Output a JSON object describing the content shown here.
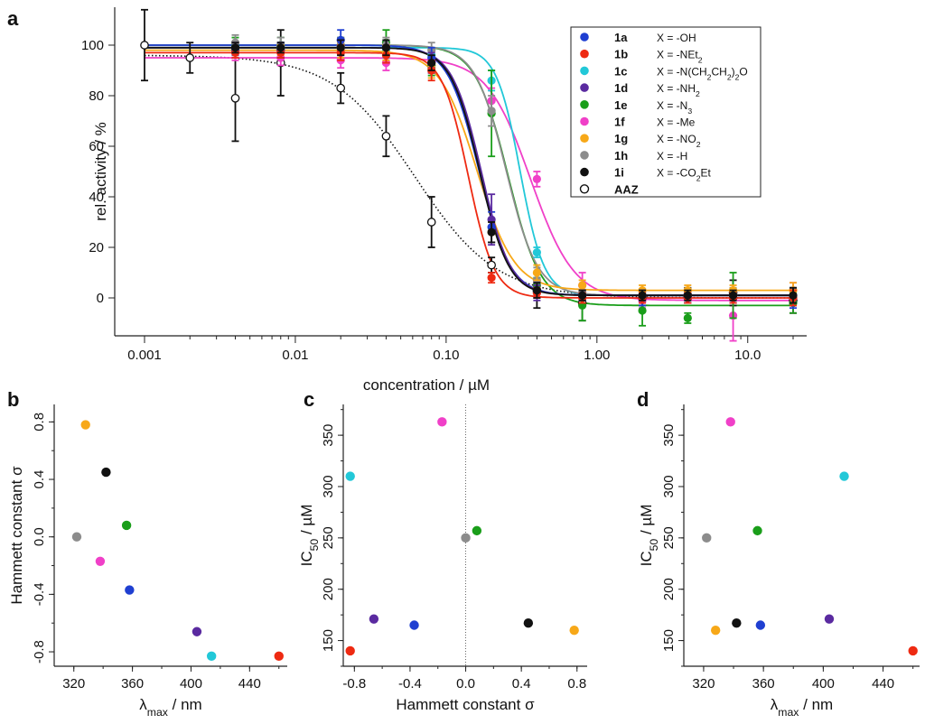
{
  "colors": {
    "1a": "#1f3fd1",
    "1b": "#ee2a12",
    "1c": "#22c8d8",
    "1d": "#5a2aa0",
    "1e": "#1a9e1a",
    "1f": "#f040c8",
    "1g": "#f7a818",
    "1h": "#8c8c8c",
    "1i": "#111111",
    "AAZ": "#111111"
  },
  "chart_data": [
    {
      "panel": "a",
      "type": "line",
      "xscale": "log",
      "xlabel": "concentration / µM",
      "ylabel": "rel. activity / %",
      "xlim": [
        0.001,
        20
      ],
      "ylim": [
        -15,
        115
      ],
      "xticks": [
        0.001,
        0.01,
        0.1,
        1,
        10
      ],
      "xtick_labels": [
        "0.001",
        "0.01",
        "0.10",
        "1.00",
        "10.0"
      ],
      "yticks": [
        0,
        20,
        40,
        60,
        80,
        100
      ],
      "legend": [
        {
          "id": "1a",
          "label": "X = -OH"
        },
        {
          "id": "1b",
          "label": "X = -NEt",
          "sub": "2"
        },
        {
          "id": "1c",
          "label": "X = -N(CH",
          "label2": "CH",
          "label3": ")",
          "label4": "O",
          "sub": "2",
          "sub2": "2",
          "sub3": "2"
        },
        {
          "id": "1d",
          "label": "X = -NH",
          "sub": "2"
        },
        {
          "id": "1e",
          "label": "X = -N",
          "sub": "3"
        },
        {
          "id": "1f",
          "label": "X = -Me"
        },
        {
          "id": "1g",
          "label": "X = -NO",
          "sub": "2"
        },
        {
          "id": "1h",
          "label": "X = -H"
        },
        {
          "id": "1i",
          "label": "X = -CO",
          "label2": "Et",
          "sub": "2"
        },
        {
          "id": "AAZ",
          "label": ""
        }
      ],
      "series": [
        {
          "name": "1a",
          "ec50": 0.165,
          "hill": 4.2,
          "top": 100,
          "bottom": 1,
          "points": [
            [
              0.004,
              98,
              2
            ],
            [
              0.008,
              98,
              3
            ],
            [
              0.02,
              102,
              4
            ],
            [
              0.04,
              99,
              3
            ],
            [
              0.08,
              95,
              4
            ],
            [
              0.2,
              28,
              6
            ],
            [
              0.4,
              3,
              3
            ],
            [
              0.8,
              1,
              2
            ],
            [
              2,
              0,
              3
            ],
            [
              4,
              0,
              2
            ],
            [
              8,
              0,
              2
            ],
            [
              20,
              0,
              4
            ]
          ]
        },
        {
          "name": "1b",
          "ec50": 0.14,
          "hill": 5.0,
          "top": 97,
          "bottom": 0,
          "points": [
            [
              0.004,
              97,
              2
            ],
            [
              0.008,
              97,
              2
            ],
            [
              0.02,
              97,
              3
            ],
            [
              0.04,
              96,
              3
            ],
            [
              0.08,
              90,
              4
            ],
            [
              0.2,
              8,
              2
            ],
            [
              0.4,
              2,
              2
            ],
            [
              0.8,
              0,
              2
            ],
            [
              2,
              0,
              2
            ],
            [
              4,
              0,
              2
            ],
            [
              8,
              0,
              2
            ],
            [
              20,
              0,
              3
            ]
          ]
        },
        {
          "name": "1c",
          "ec50": 0.31,
          "hill": 5.5,
          "top": 99,
          "bottom": 1,
          "points": [
            [
              0.004,
              99,
              2
            ],
            [
              0.008,
              99,
              2
            ],
            [
              0.02,
              99,
              3
            ],
            [
              0.04,
              98,
              3
            ],
            [
              0.08,
              96,
              3
            ],
            [
              0.2,
              86,
              4
            ],
            [
              0.4,
              18,
              2
            ],
            [
              0.8,
              1,
              2
            ],
            [
              2,
              0,
              2
            ],
            [
              4,
              0,
              2
            ],
            [
              8,
              0,
              2
            ],
            [
              20,
              0,
              3
            ]
          ]
        },
        {
          "name": "1d",
          "ec50": 0.171,
          "hill": 4.5,
          "top": 99,
          "bottom": 1,
          "points": [
            [
              0.004,
              99,
              2
            ],
            [
              0.008,
              98,
              3
            ],
            [
              0.02,
              99,
              3
            ],
            [
              0.04,
              99,
              3
            ],
            [
              0.08,
              93,
              4
            ],
            [
              0.2,
              31,
              10
            ],
            [
              0.4,
              2,
              3
            ],
            [
              0.8,
              1,
              2
            ],
            [
              2,
              0,
              2
            ],
            [
              4,
              0,
              2
            ],
            [
              8,
              0,
              2
            ],
            [
              20,
              0,
              3
            ]
          ]
        },
        {
          "name": "1e",
          "ec50": 0.257,
          "hill": 4.0,
          "top": 100,
          "bottom": -3,
          "points": [
            [
              0.004,
              100,
              3
            ],
            [
              0.008,
              100,
              3
            ],
            [
              0.02,
              100,
              3
            ],
            [
              0.04,
              101,
              5
            ],
            [
              0.08,
              92,
              4
            ],
            [
              0.2,
              73,
              17
            ],
            [
              0.4,
              5,
              3
            ],
            [
              0.8,
              -3,
              6
            ],
            [
              2,
              -5,
              6
            ],
            [
              4,
              -8,
              2
            ],
            [
              8,
              1,
              9
            ],
            [
              20,
              -2,
              4
            ]
          ]
        },
        {
          "name": "1f",
          "ec50": 0.363,
          "hill": 3.0,
          "top": 95,
          "bottom": -1,
          "points": [
            [
              0.004,
              97,
              3
            ],
            [
              0.008,
              95,
              3
            ],
            [
              0.02,
              94,
              3
            ],
            [
              0.04,
              93,
              3
            ],
            [
              0.08,
              92,
              3
            ],
            [
              0.2,
              78,
              5
            ],
            [
              0.4,
              47,
              3
            ],
            [
              0.8,
              5,
              5
            ],
            [
              2,
              -1,
              3
            ],
            [
              4,
              0,
              2
            ],
            [
              8,
              -7,
              10
            ],
            [
              20,
              0,
              6
            ]
          ]
        },
        {
          "name": "1g",
          "ec50": 0.16,
          "hill": 3.5,
          "top": 98,
          "bottom": 3,
          "points": [
            [
              0.004,
              98,
              2
            ],
            [
              0.008,
              98,
              2
            ],
            [
              0.02,
              98,
              3
            ],
            [
              0.04,
              97,
              3
            ],
            [
              0.08,
              91,
              4
            ],
            [
              0.2,
              26,
              4
            ],
            [
              0.4,
              10,
              3
            ],
            [
              0.8,
              5,
              2
            ],
            [
              2,
              3,
              2
            ],
            [
              4,
              3,
              2
            ],
            [
              8,
              3,
              2
            ],
            [
              20,
              3,
              3
            ]
          ]
        },
        {
          "name": "1h",
          "ec50": 0.25,
          "hill": 4.2,
          "top": 100,
          "bottom": 1,
          "points": [
            [
              0.004,
              101,
              3
            ],
            [
              0.008,
              100,
              3
            ],
            [
              0.02,
              100,
              3
            ],
            [
              0.04,
              100,
              3
            ],
            [
              0.08,
              98,
              3
            ],
            [
              0.2,
              74,
              6
            ],
            [
              0.4,
              7,
              5
            ],
            [
              0.8,
              2,
              3
            ],
            [
              2,
              1,
              2
            ],
            [
              4,
              1,
              2
            ],
            [
              8,
              1,
              3
            ],
            [
              20,
              1,
              3
            ]
          ]
        },
        {
          "name": "1i",
          "ec50": 0.167,
          "hill": 4.5,
          "top": 99,
          "bottom": 1,
          "points": [
            [
              0.004,
              99,
              2
            ],
            [
              0.008,
              99,
              2
            ],
            [
              0.02,
              99,
              3
            ],
            [
              0.04,
              99,
              3
            ],
            [
              0.08,
              93,
              3
            ],
            [
              0.2,
              26,
              4
            ],
            [
              0.4,
              3,
              3
            ],
            [
              0.8,
              1,
              2
            ],
            [
              2,
              1,
              2
            ],
            [
              4,
              1,
              2
            ],
            [
              8,
              1,
              2
            ],
            [
              20,
              1,
              3
            ]
          ]
        },
        {
          "name": "AAZ",
          "ec50": 0.062,
          "hill": 1.6,
          "top": 96,
          "bottom": 0,
          "open": true,
          "dotted": true,
          "points": [
            [
              0.001,
              100,
              14
            ],
            [
              0.002,
              95,
              6
            ],
            [
              0.004,
              79,
              17
            ],
            [
              0.008,
              93,
              13
            ],
            [
              0.02,
              83,
              6
            ],
            [
              0.04,
              64,
              8
            ],
            [
              0.08,
              30,
              10
            ],
            [
              0.2,
              13,
              3
            ],
            [
              0.4,
              3,
              7
            ],
            [
              0.8,
              -2,
              7
            ],
            [
              2,
              0,
              3
            ],
            [
              4,
              1,
              3
            ],
            [
              8,
              2,
              5
            ],
            [
              20,
              -1,
              5
            ]
          ]
        }
      ]
    },
    {
      "panel": "b",
      "type": "scatter",
      "xlabel": "λ",
      "xlabel_sub": "max",
      "xlabel_suffix": " / nm",
      "ylabel": "Hammett constant σ",
      "xlim": [
        314,
        462
      ],
      "ylim": [
        -0.85,
        0.84
      ],
      "xticks": [
        320,
        360,
        400,
        440
      ],
      "yticks": [
        -0.8,
        -0.4,
        0.0,
        0.4,
        0.8
      ],
      "ytick_labels": [
        "-0.8",
        "-0.4",
        "0.0",
        "0.4",
        "0.8"
      ],
      "points": [
        {
          "id": "1g",
          "x": 328,
          "y": 0.78
        },
        {
          "id": "1i",
          "x": 342,
          "y": 0.45
        },
        {
          "id": "1e",
          "x": 356,
          "y": 0.08
        },
        {
          "id": "1h",
          "x": 322,
          "y": 0.0
        },
        {
          "id": "1f",
          "x": 338,
          "y": -0.17
        },
        {
          "id": "1a",
          "x": 358,
          "y": -0.37
        },
        {
          "id": "1d",
          "x": 404,
          "y": -0.66
        },
        {
          "id": "1c",
          "x": 414,
          "y": -0.83
        },
        {
          "id": "1b",
          "x": 460,
          "y": -0.83
        }
      ]
    },
    {
      "panel": "c",
      "type": "scatter",
      "xlabel": "Hammett constant σ",
      "ylabel": "IC",
      "ylabel_sub": "50",
      "ylabel_suffix": " / µM",
      "xlim": [
        -0.88,
        0.86
      ],
      "ylim": [
        125,
        380
      ],
      "xticks": [
        -0.8,
        -0.4,
        0.0,
        0.4,
        0.8
      ],
      "xtick_labels": [
        "-0.8",
        "-0.4",
        "0.0",
        "0.4",
        "0.8"
      ],
      "yticks": [
        150,
        200,
        250,
        300,
        350
      ],
      "zero_line": true,
      "points": [
        {
          "id": "1b",
          "x": -0.83,
          "y": 140
        },
        {
          "id": "1c",
          "x": -0.83,
          "y": 310
        },
        {
          "id": "1d",
          "x": -0.66,
          "y": 171
        },
        {
          "id": "1a",
          "x": -0.37,
          "y": 165
        },
        {
          "id": "1f",
          "x": -0.17,
          "y": 363
        },
        {
          "id": "1h",
          "x": 0.0,
          "y": 250
        },
        {
          "id": "1e",
          "x": 0.08,
          "y": 257
        },
        {
          "id": "1i",
          "x": 0.45,
          "y": 167
        },
        {
          "id": "1g",
          "x": 0.78,
          "y": 160
        }
      ]
    },
    {
      "panel": "d",
      "type": "scatter",
      "xlabel": "λ",
      "xlabel_sub": "max",
      "xlabel_suffix": " / nm",
      "ylabel": "IC",
      "ylabel_sub": "50",
      "ylabel_suffix": " / µM",
      "xlim": [
        314,
        462
      ],
      "ylim": [
        125,
        380
      ],
      "xticks": [
        320,
        360,
        400,
        440
      ],
      "yticks": [
        150,
        200,
        250,
        300,
        350
      ],
      "points": [
        {
          "id": "1f",
          "x": 338,
          "y": 363
        },
        {
          "id": "1c",
          "x": 414,
          "y": 310
        },
        {
          "id": "1e",
          "x": 356,
          "y": 257
        },
        {
          "id": "1h",
          "x": 322,
          "y": 250
        },
        {
          "id": "1d",
          "x": 404,
          "y": 171
        },
        {
          "id": "1i",
          "x": 342,
          "y": 167
        },
        {
          "id": "1a",
          "x": 358,
          "y": 165
        },
        {
          "id": "1g",
          "x": 328,
          "y": 160
        },
        {
          "id": "1b",
          "x": 460,
          "y": 140
        }
      ]
    }
  ]
}
